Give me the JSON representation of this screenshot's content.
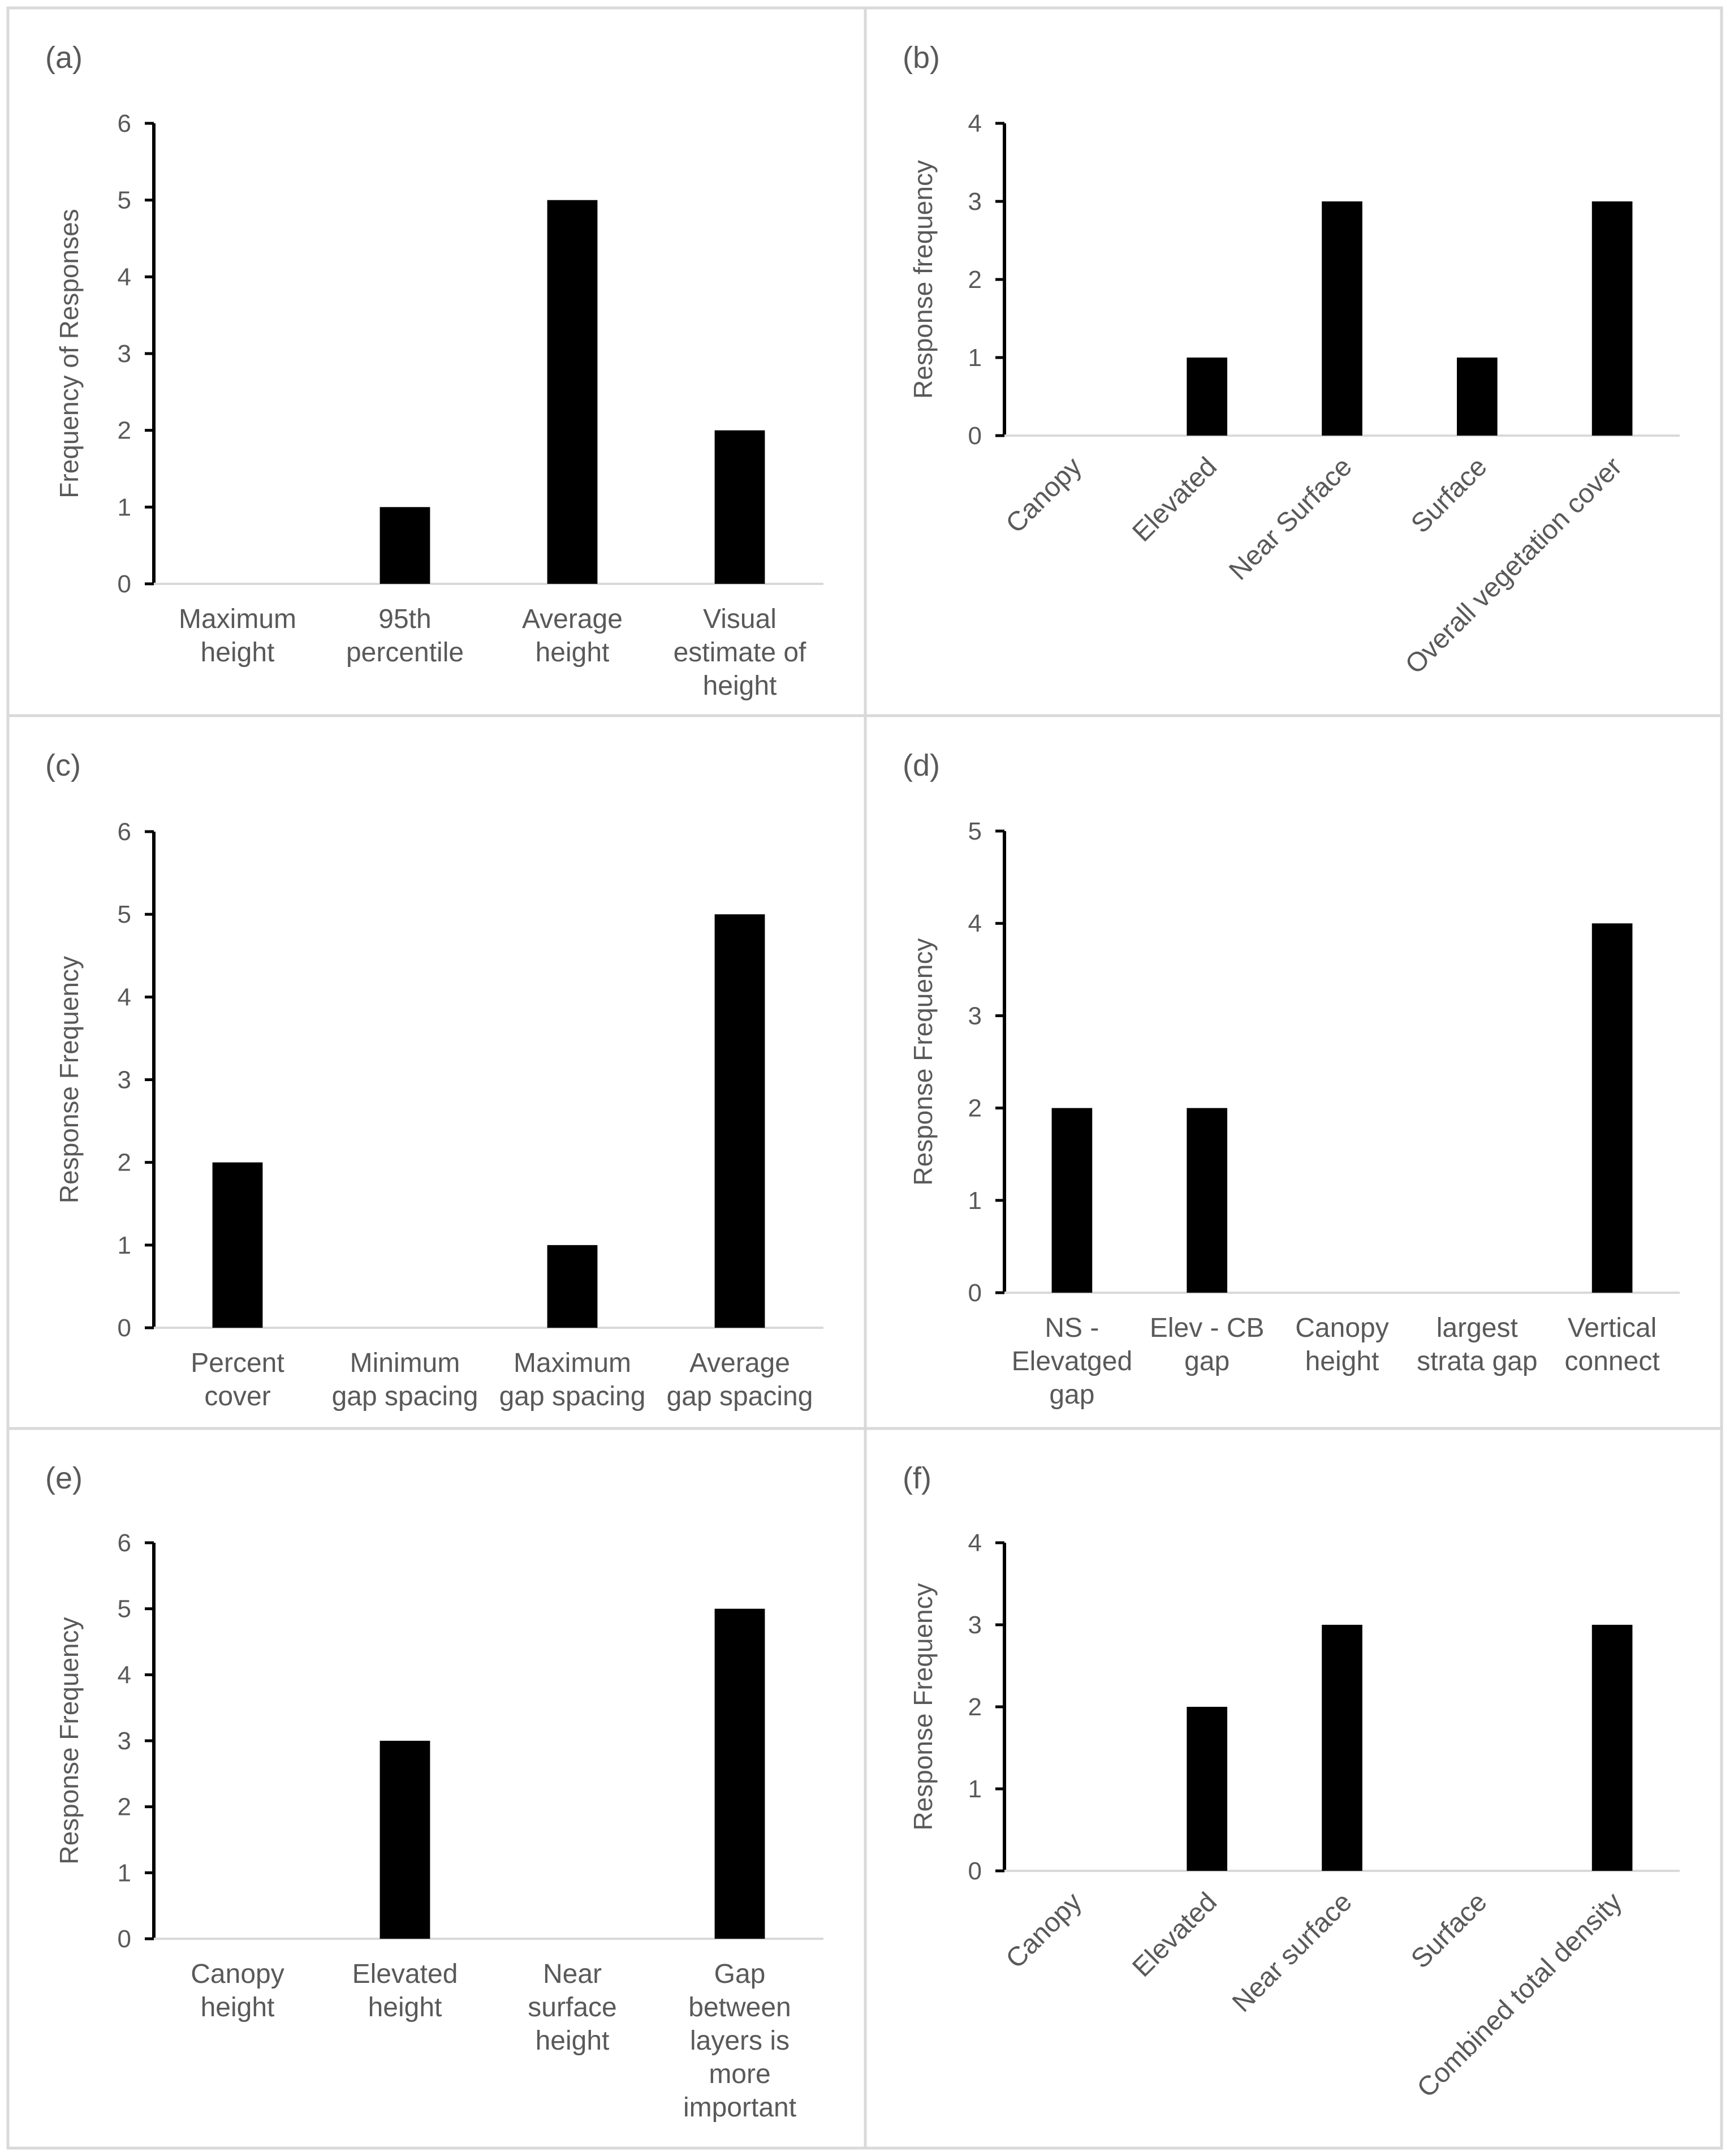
{
  "chart_data": [
    {
      "panel": "(a)",
      "type": "bar",
      "ylabel": "Frequency of Responses",
      "ylim": [
        0,
        6
      ],
      "yticks": [
        "0",
        "1",
        "2",
        "3",
        "4",
        "5",
        "6"
      ],
      "categories": [
        [
          "Maximum",
          "height"
        ],
        [
          "95th",
          "percentile"
        ],
        [
          "Average",
          "height"
        ],
        [
          "Visual",
          "estimate of",
          "height"
        ]
      ],
      "values": [
        0,
        1,
        5,
        2
      ],
      "label_rotation": 0,
      "colors": {
        "bar": "#000000",
        "axis": "#000000",
        "baseline": "#d9d9d9",
        "text": "#595959"
      }
    },
    {
      "panel": "(b)",
      "type": "bar",
      "ylabel": "Response  frequency",
      "ylim": [
        0,
        4
      ],
      "yticks": [
        "0",
        "1",
        "2",
        "3",
        "4"
      ],
      "categories": [
        [
          "Canopy"
        ],
        [
          "Elevated"
        ],
        [
          "Near Surface"
        ],
        [
          "Surface"
        ],
        [
          "Overall vegetation cover"
        ]
      ],
      "values": [
        0,
        1,
        3,
        1,
        3
      ],
      "label_rotation": -45,
      "colors": {
        "bar": "#000000",
        "axis": "#000000",
        "baseline": "#d9d9d9",
        "text": "#595959"
      }
    },
    {
      "panel": "(c)",
      "type": "bar",
      "ylabel": "Response  Frequency",
      "ylim": [
        0,
        6
      ],
      "yticks": [
        "0",
        "1",
        "2",
        "3",
        "4",
        "5",
        "6"
      ],
      "categories": [
        [
          "Percent",
          "cover"
        ],
        [
          "Minimum",
          "gap spacing"
        ],
        [
          "Maximum",
          "gap spacing"
        ],
        [
          "Average",
          "gap spacing"
        ]
      ],
      "values": [
        2,
        0,
        1,
        5
      ],
      "label_rotation": 0,
      "colors": {
        "bar": "#000000",
        "axis": "#000000",
        "baseline": "#d9d9d9",
        "text": "#595959"
      }
    },
    {
      "panel": "(d)",
      "type": "bar",
      "ylabel": "Response  Frequency",
      "ylim": [
        0,
        5
      ],
      "yticks": [
        "0",
        "1",
        "2",
        "3",
        "4",
        "5"
      ],
      "categories": [
        [
          "NS -",
          "Elevatged",
          "gap"
        ],
        [
          "Elev - CB",
          "gap"
        ],
        [
          "Canopy",
          "height"
        ],
        [
          "largest",
          "strata gap"
        ],
        [
          "Vertical",
          "connect"
        ]
      ],
      "values": [
        2,
        2,
        0,
        0,
        4
      ],
      "label_rotation": 0,
      "colors": {
        "bar": "#000000",
        "axis": "#000000",
        "baseline": "#d9d9d9",
        "text": "#595959"
      }
    },
    {
      "panel": "(e)",
      "type": "bar",
      "ylabel": "Response  Frequency",
      "ylim": [
        0,
        6
      ],
      "yticks": [
        "0",
        "1",
        "2",
        "3",
        "4",
        "5",
        "6"
      ],
      "categories": [
        [
          "Canopy",
          "height"
        ],
        [
          "Elevated",
          "height"
        ],
        [
          "Near",
          "surface",
          "height"
        ],
        [
          "Gap",
          "between",
          "layers is",
          "more",
          "important"
        ]
      ],
      "values": [
        0,
        3,
        0,
        5
      ],
      "label_rotation": 0,
      "colors": {
        "bar": "#000000",
        "axis": "#000000",
        "baseline": "#d9d9d9",
        "text": "#595959"
      }
    },
    {
      "panel": "(f)",
      "type": "bar",
      "ylabel": "Response  Frequency",
      "ylim": [
        0,
        4
      ],
      "yticks": [
        "0",
        "1",
        "2",
        "3",
        "4"
      ],
      "categories": [
        [
          "Canopy"
        ],
        [
          "Elevated"
        ],
        [
          "Near surface"
        ],
        [
          "Surface"
        ],
        [
          "Combined total density"
        ]
      ],
      "values": [
        0,
        2,
        3,
        0,
        3
      ],
      "label_rotation": -45,
      "colors": {
        "bar": "#000000",
        "axis": "#000000",
        "baseline": "#d9d9d9",
        "text": "#595959"
      }
    }
  ]
}
